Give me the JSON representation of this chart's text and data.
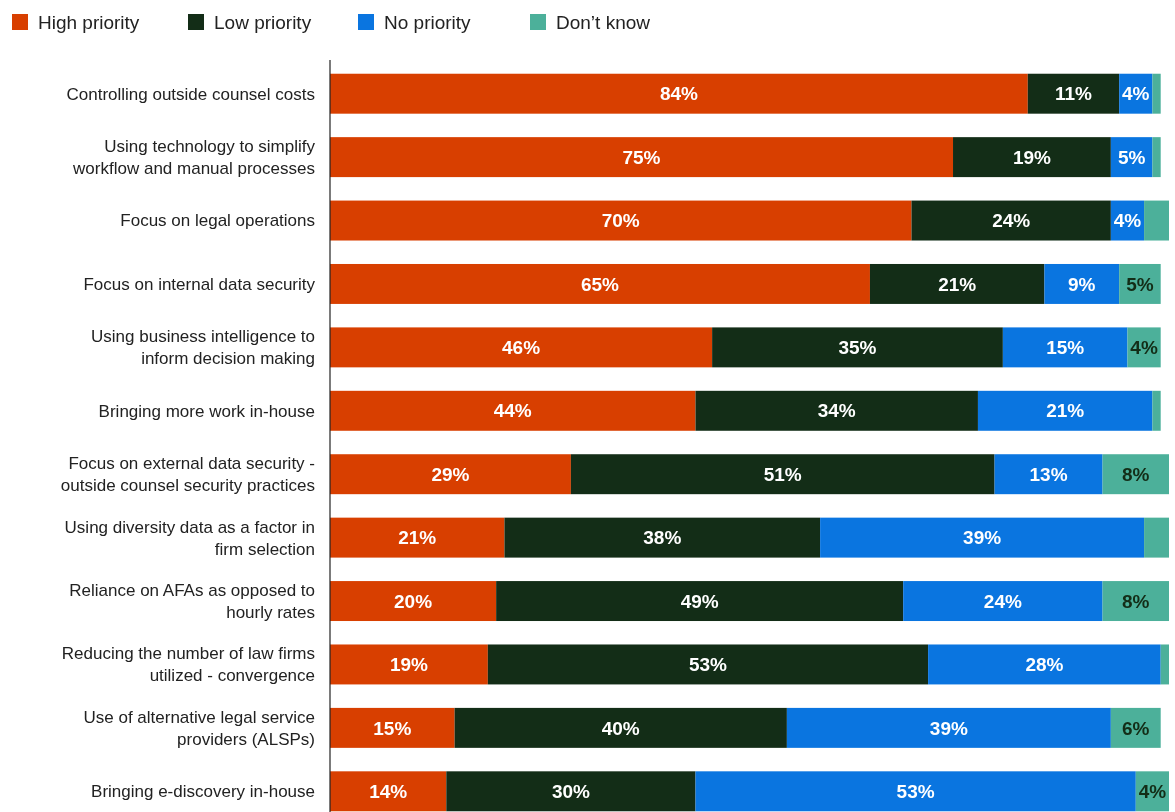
{
  "chart_data": {
    "type": "bar",
    "orientation": "horizontal",
    "stacked": true,
    "legend": "top left",
    "xlim": [
      0,
      101
    ],
    "tick_labels": "y",
    "categories": [
      "Controlling outside counsel costs",
      "Using technology to simplify workflow and manual processes",
      "Focus on legal operations",
      "Focus on internal data security",
      "Using business intelligence to inform decision making",
      "Bringing more work in-house",
      "Focus on external data security - outside counsel security practices",
      "Using diversity data as a factor in firm selection",
      "Reliance on AFAs as opposed to hourly rates",
      "Reducing the number of law firms utilized - convergence",
      "Use of alternative legal service providers (ALSPs)",
      "Bringing e-discovery in-house"
    ],
    "series": [
      {
        "name": "High priority",
        "color": "#d83f00",
        "values": [
          84,
          75,
          70,
          65,
          46,
          44,
          29,
          21,
          20,
          19,
          15,
          14
        ],
        "value_labels": [
          "84%",
          "75%",
          "70%",
          "65%",
          "46%",
          "44%",
          "29%",
          "21%",
          "20%",
          "19%",
          "15%",
          "14%"
        ]
      },
      {
        "name": "Low priority",
        "color": "#132d17",
        "values": [
          11,
          19,
          24,
          21,
          35,
          34,
          51,
          38,
          49,
          53,
          40,
          30
        ],
        "value_labels": [
          "11%",
          "19%",
          "24%",
          "21%",
          "35%",
          "34%",
          "51%",
          "38%",
          "49%",
          "53%",
          "40%",
          "30%"
        ]
      },
      {
        "name": "No priority",
        "color": "#0a75e0",
        "values": [
          4,
          5,
          4,
          9,
          15,
          21,
          13,
          39,
          24,
          28,
          39,
          53
        ],
        "value_labels": [
          "4%",
          "5%",
          "4%",
          "9%",
          "15%",
          "21%",
          "13%",
          "39%",
          "24%",
          "28%",
          "39%",
          "53%"
        ]
      },
      {
        "name": "Don’t know",
        "color": "#4cb09a",
        "values": [
          1,
          1,
          3,
          5,
          4,
          1,
          8,
          3,
          8,
          1,
          6,
          4
        ],
        "value_labels": [
          null,
          null,
          null,
          "5%",
          "4%",
          null,
          "8%",
          null,
          "8%",
          null,
          "6%",
          "4%"
        ]
      }
    ]
  }
}
